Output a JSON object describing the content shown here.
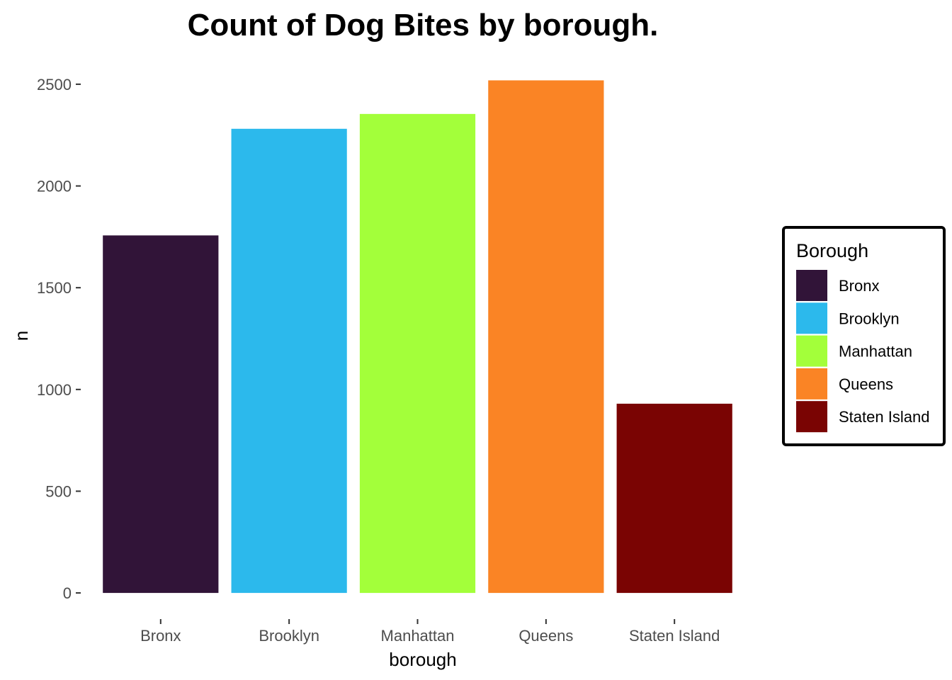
{
  "chart_data": {
    "type": "bar",
    "title": "Count of Dog Bites by borough.",
    "xlabel": "borough",
    "ylabel": "n",
    "categories": [
      "Bronx",
      "Brooklyn",
      "Manhattan",
      "Queens",
      "Staten Island"
    ],
    "values": [
      1757,
      2281,
      2354,
      2519,
      930
    ],
    "colors": [
      "#311438",
      "#2CB9EC",
      "#A3FF3A",
      "#FA8425",
      "#7A0403"
    ],
    "ylim": [
      -125,
      2625
    ],
    "yticks": [
      0,
      500,
      1000,
      1500,
      2000,
      2500
    ],
    "grid": false,
    "legend": {
      "title": "Borough",
      "position": "right",
      "items": [
        "Bronx",
        "Brooklyn",
        "Manhattan",
        "Queens",
        "Staten Island"
      ]
    }
  }
}
